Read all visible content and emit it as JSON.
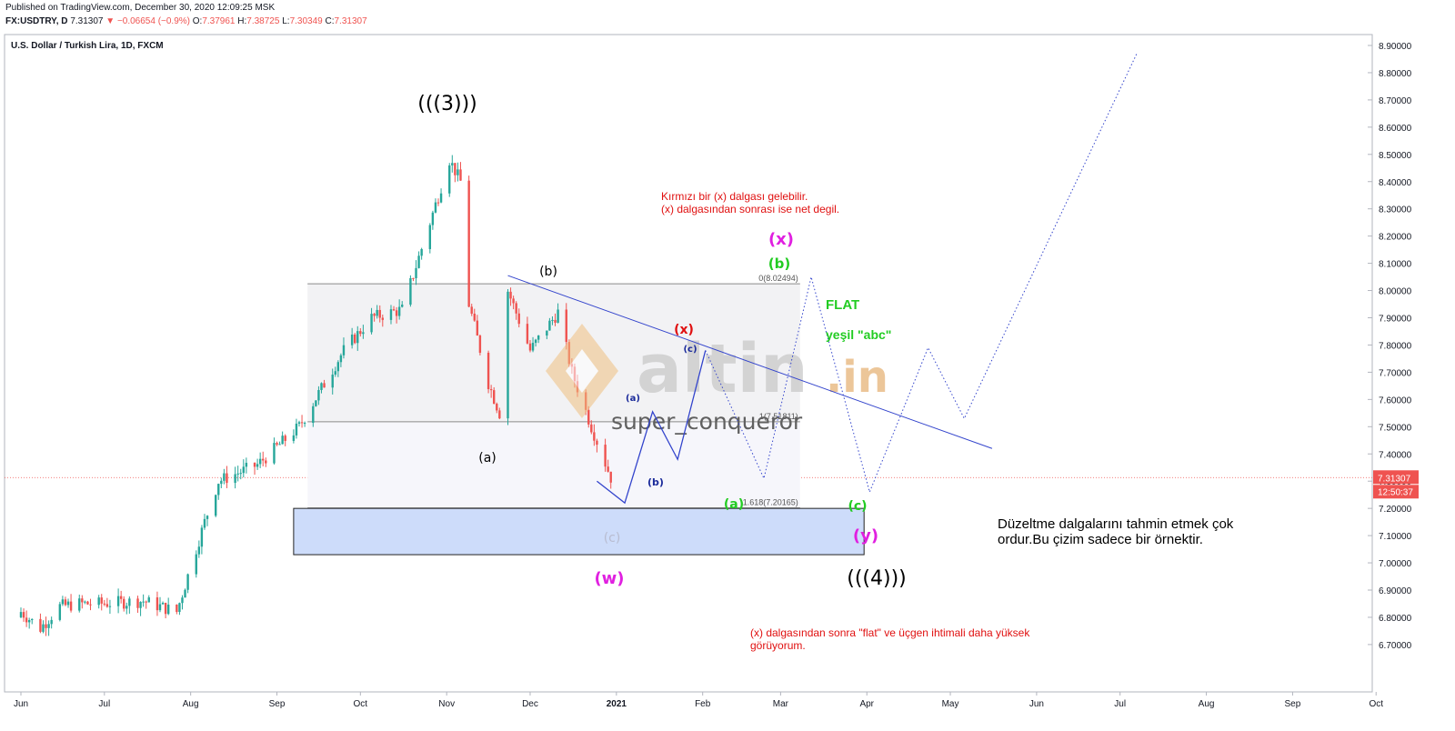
{
  "header": {
    "published": "Published on TradingView.com, December 30, 2020 12:09:25 MSK",
    "symbol": "FX:USDTRY, D",
    "last": "7.31307",
    "change_arrow": "▼",
    "change": "−0.06654 (−0.9%)",
    "o_label": "O:",
    "o": "7.37961",
    "h_label": "H:",
    "h": "7.38725",
    "l_label": "L:",
    "l": "7.30349",
    "c_label": "C:",
    "c": "7.31307"
  },
  "chart_data": {
    "type": "candlestick",
    "title": "U.S. Dollar / Turkish Lira, 1D, FXCM",
    "y_ticks": [
      "8.90000",
      "8.80000",
      "8.70000",
      "8.60000",
      "8.50000",
      "8.40000",
      "8.30000",
      "8.20000",
      "8.10000",
      "8.00000",
      "7.90000",
      "7.80000",
      "7.70000",
      "7.60000",
      "7.50000",
      "7.40000",
      "7.30000",
      "7.20000",
      "7.10000",
      "7.00000",
      "6.90000",
      "6.80000",
      "6.70000"
    ],
    "y_tick_values": [
      8.9,
      8.8,
      8.7,
      8.6,
      8.5,
      8.4,
      8.3,
      8.2,
      8.1,
      8.0,
      7.9,
      7.8,
      7.7,
      7.6,
      7.5,
      7.4,
      7.3,
      7.2,
      7.1,
      7.0,
      6.9,
      6.8,
      6.7
    ],
    "x_ticks": [
      "Jun",
      "Jul",
      "Aug",
      "Sep",
      "Oct",
      "Nov",
      "Dec",
      "2021",
      "Feb",
      "Mar",
      "Apr",
      "May",
      "Jun",
      "Jul",
      "Aug",
      "Sep",
      "Oct"
    ],
    "ylim": [
      6.64,
      8.96
    ],
    "price_label": "7.31307",
    "countdown_label": "12:50:37",
    "last_price": 7.31307,
    "up_color": "#26a69a",
    "down_color": "#ef5350",
    "fib": {
      "top_value": 8.02494,
      "top_label": "0(8.02494)",
      "mid_value": 7.51811,
      "mid_label": "1(7.51811)",
      "bot_value": 7.20165,
      "bot_label": "1.618(7.20165)",
      "date_start": "2020-09-12",
      "date_end": "2021-03-08"
    },
    "target_box": {
      "date_start": "2020-09-07",
      "date_end": "2021-03-31",
      "top": 7.2,
      "bottom": 7.03
    },
    "trendline": [
      [
        "2020-11-23",
        8.055
      ],
      [
        "2021-05-16",
        7.42
      ]
    ],
    "wave_path_solid": [
      [
        "2020-12-25",
        7.3
      ],
      [
        "2021-01-04",
        7.22
      ],
      [
        "2021-01-14",
        7.555
      ],
      [
        "2021-01-23",
        7.38
      ],
      [
        "2021-02-02",
        7.78
      ]
    ],
    "wave_path_dotted": [
      [
        "2021-02-02",
        7.78
      ],
      [
        "2021-02-23",
        7.31
      ],
      [
        "2021-03-12",
        8.05
      ],
      [
        "2021-04-02",
        7.26
      ],
      [
        "2021-04-23",
        7.79
      ],
      [
        "2021-05-06",
        7.53
      ],
      [
        "2021-07-07",
        8.87
      ]
    ],
    "candles_sampled": [
      {
        "d": "2020-06-01",
        "o": 6.78,
        "c": 6.82
      },
      {
        "d": "2020-06-08",
        "o": 6.82,
        "c": 6.76
      },
      {
        "d": "2020-06-15",
        "o": 6.76,
        "c": 6.84
      },
      {
        "d": "2020-06-22",
        "o": 6.84,
        "c": 6.85
      },
      {
        "d": "2020-06-29",
        "o": 6.85,
        "c": 6.85
      },
      {
        "d": "2020-07-15",
        "o": 6.85,
        "c": 6.86
      },
      {
        "d": "2020-07-27",
        "o": 6.86,
        "c": 6.82
      },
      {
        "d": "2020-08-06",
        "o": 6.93,
        "c": 7.15
      },
      {
        "d": "2020-08-11",
        "o": 7.15,
        "c": 7.3
      },
      {
        "d": "2020-08-25",
        "o": 7.33,
        "c": 7.36
      },
      {
        "d": "2020-09-09",
        "o": 7.42,
        "c": 7.5
      },
      {
        "d": "2020-09-25",
        "o": 7.65,
        "c": 7.78
      },
      {
        "d": "2020-10-05",
        "o": 7.8,
        "c": 7.9
      },
      {
        "d": "2020-10-16",
        "o": 7.88,
        "c": 7.93
      },
      {
        "d": "2020-10-26",
        "o": 8.03,
        "c": 8.25
      },
      {
        "d": "2020-11-02",
        "o": 8.4,
        "c": 8.48
      },
      {
        "d": "2020-11-06",
        "o": 8.5,
        "c": 8.4
      },
      {
        "d": "2020-11-09",
        "o": 8.38,
        "c": 7.95
      },
      {
        "d": "2020-11-16",
        "o": 7.78,
        "c": 7.66
      },
      {
        "d": "2020-11-20",
        "o": 7.62,
        "c": 7.55
      },
      {
        "d": "2020-11-23",
        "o": 7.61,
        "c": 8.0
      },
      {
        "d": "2020-12-01",
        "o": 7.88,
        "c": 7.78
      },
      {
        "d": "2020-12-11",
        "o": 7.87,
        "c": 7.92
      },
      {
        "d": "2020-12-16",
        "o": 7.88,
        "c": 7.7
      },
      {
        "d": "2020-12-23",
        "o": 7.62,
        "c": 7.5
      },
      {
        "d": "2020-12-30",
        "o": 7.37961,
        "c": 7.31307
      }
    ]
  },
  "annotations": {
    "wave3": "(((3)))",
    "wave_b_big": "(b)",
    "wave_a_big": "(a)",
    "wave_x_red": "(x)",
    "wave_c_small_blue": "(c)",
    "wave_a_small_blue": "(a)",
    "wave_b_small_blue": "(b)",
    "wave_a_green": "(a)",
    "wave_b_green": "(b)",
    "wave_c_green": "(c)",
    "wave_x_magenta": "(x)",
    "wave_y_magenta": "(y)",
    "wave_w_magenta": "(w)",
    "wave_c_gray": "(c)",
    "wave4": "(((4)))",
    "flat_label": "FLAT",
    "green_abc": "yeşil \"abc\"",
    "note_red_top_1": "Kırmızı bir (x) dalgası gelebilir.",
    "note_red_top_2": "(x) dalgasından sonrası ise net degil.",
    "note_black_1": "Düzeltme dalgalarını tahmin etmek çok",
    "note_black_2": "ordur.Bu çizim sadece bir örnektir.",
    "note_red_bottom_1": "(x) dalgasından sonra  \"flat\" ve üçgen ihtimali daha yüksek",
    "note_red_bottom_2": "görüyorum.",
    "watermark_brand": "altin",
    "watermark_tld": ".in",
    "watermark_user": "super_conqueror"
  },
  "colors": {
    "red": "#e01010",
    "green": "#22cc22",
    "magenta": "#e020e0",
    "navy": "#1a2a9a",
    "trendline": "#3344cc",
    "fib_line": "#8a8a8a",
    "box_fill": "#cddcfa",
    "box_stroke": "#222222"
  }
}
